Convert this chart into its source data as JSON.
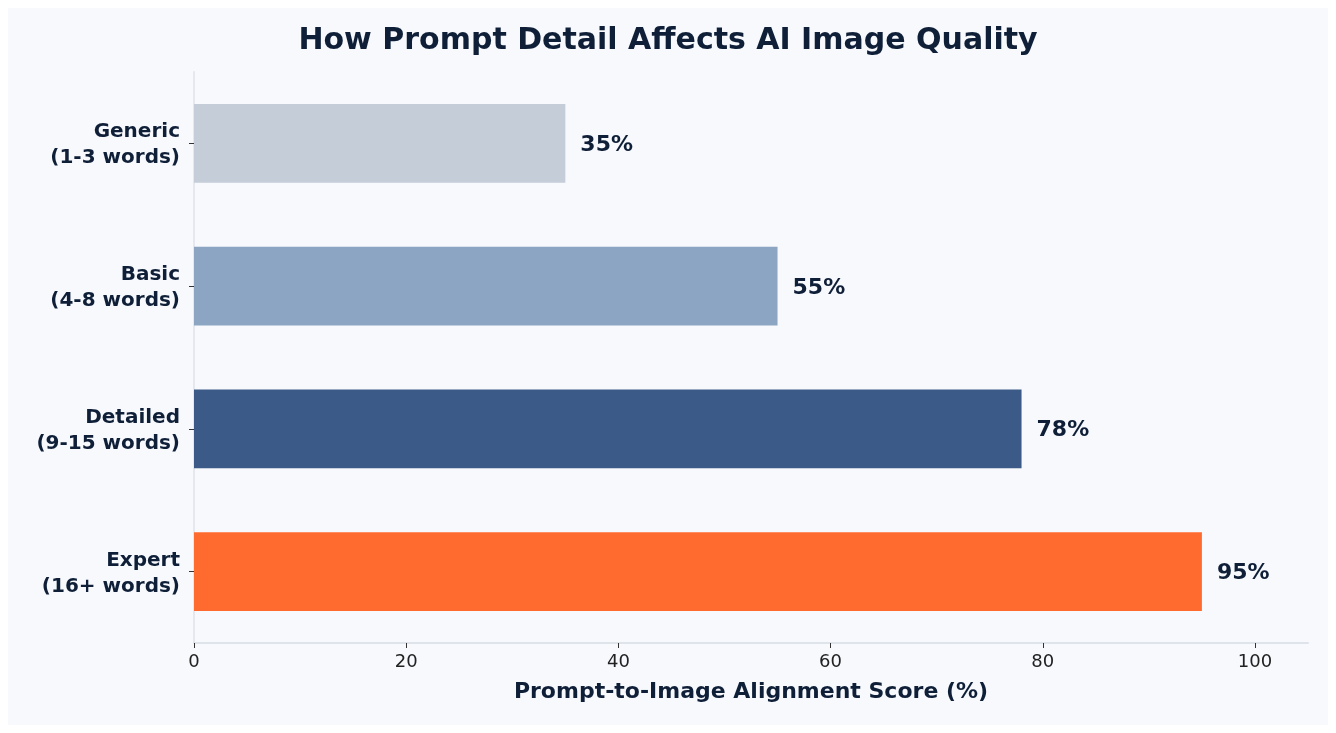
{
  "chart_data": {
    "type": "bar",
    "orientation": "horizontal",
    "title": "How Prompt Detail Affects AI Image Quality",
    "xlabel": "Prompt-to-Image Alignment Score (%)",
    "categories": [
      "Generic\n(1-3 words)",
      "Basic\n(4-8 words)",
      "Detailed\n(9-15 words)",
      "Expert\n(16+ words)"
    ],
    "values": [
      35,
      55,
      78,
      95
    ],
    "colors": [
      "#c5cdd8",
      "#8ba5c2",
      "#3b5a87",
      "#ff6b2f"
    ],
    "value_labels": [
      "35%",
      "55%",
      "78%",
      "95%"
    ],
    "xlim": [
      0,
      105
    ],
    "xticks": [
      0,
      20,
      40,
      60,
      80,
      100
    ],
    "grid": false
  }
}
